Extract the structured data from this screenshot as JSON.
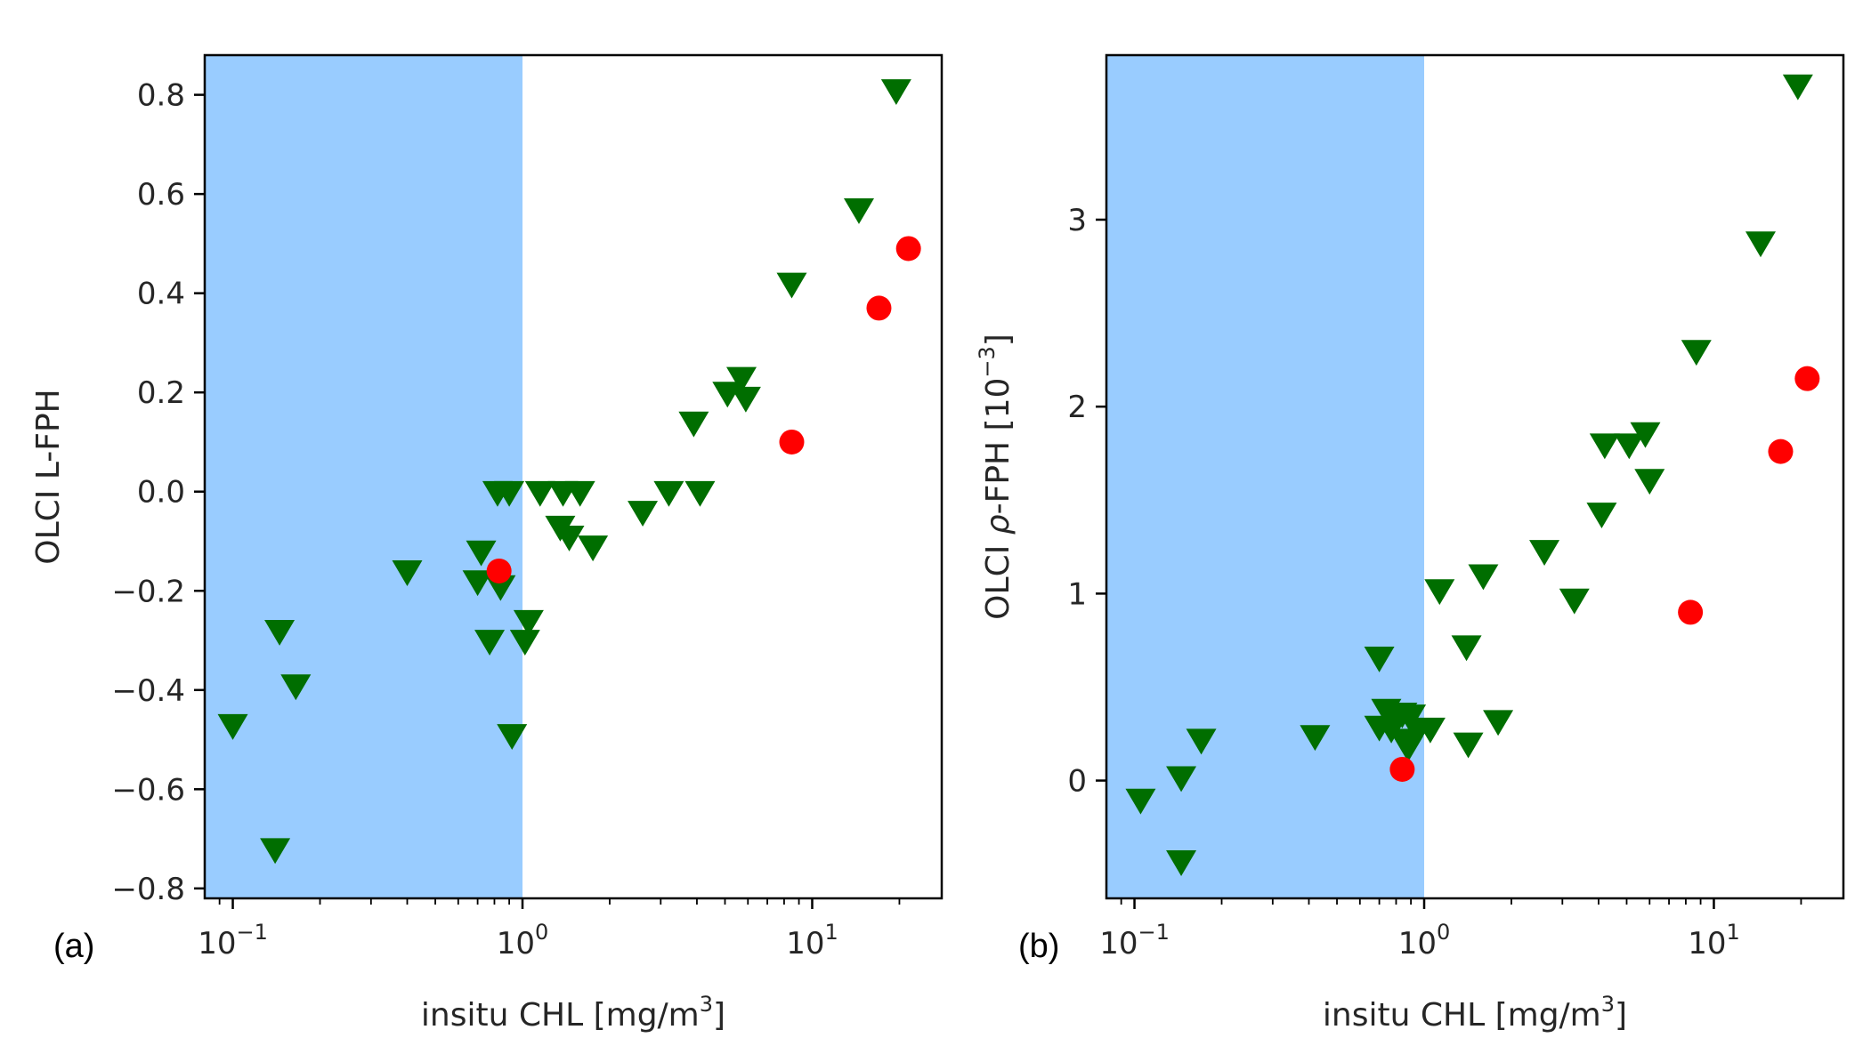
{
  "colors": {
    "shade": "#99ccff",
    "triangle": "#006e00",
    "circle": "#ff0000",
    "axis": "#000000"
  },
  "chart_data": [
    {
      "type": "scatter",
      "panel_label": "(a)",
      "xlabel": "insitu CHL [mg/m³]",
      "xlabel_base": "insitu CHL [mg/m",
      "xlabel_sup": "3",
      "xlabel_end": "]",
      "ylabel": "OLCI L-FPH",
      "xscale": "log",
      "xlim": [
        0.08,
        28
      ],
      "ylim": [
        -0.82,
        0.88
      ],
      "xticks": [
        {
          "value": 0.1,
          "base": "10",
          "exp": "−1"
        },
        {
          "value": 1,
          "base": "10",
          "exp": "0"
        },
        {
          "value": 10,
          "base": "10",
          "exp": "1"
        }
      ],
      "yticks": [
        {
          "value": 0.8,
          "label": "0.8"
        },
        {
          "value": 0.6,
          "label": "0.6"
        },
        {
          "value": 0.4,
          "label": "0.4"
        },
        {
          "value": 0.2,
          "label": "0.2"
        },
        {
          "value": 0.0,
          "label": "0.0"
        },
        {
          "value": -0.2,
          "label": "−0.2"
        },
        {
          "value": -0.4,
          "label": "−0.4"
        },
        {
          "value": -0.6,
          "label": "−0.6"
        },
        {
          "value": -0.8,
          "label": "−0.8"
        }
      ],
      "shaded_region": {
        "x_from": 0.08,
        "x_to": 1.0
      },
      "series": [
        {
          "name": "triangles",
          "marker": "triangle-down",
          "points": [
            [
              0.1,
              -0.47
            ],
            [
              0.14,
              -0.72
            ],
            [
              0.145,
              -0.28
            ],
            [
              0.165,
              -0.39
            ],
            [
              0.4,
              -0.16
            ],
            [
              0.7,
              -0.18
            ],
            [
              0.72,
              -0.12
            ],
            [
              0.77,
              -0.3
            ],
            [
              0.82,
              0.0
            ],
            [
              0.84,
              -0.19
            ],
            [
              0.9,
              0.0
            ],
            [
              0.92,
              -0.49
            ],
            [
              1.02,
              -0.3
            ],
            [
              1.05,
              -0.26
            ],
            [
              1.15,
              0.0
            ],
            [
              1.35,
              -0.07
            ],
            [
              1.38,
              0.0
            ],
            [
              1.45,
              -0.09
            ],
            [
              1.58,
              0.0
            ],
            [
              1.75,
              -0.11
            ],
            [
              2.6,
              -0.04
            ],
            [
              3.2,
              0.0
            ],
            [
              3.9,
              0.14
            ],
            [
              4.1,
              0.0
            ],
            [
              5.1,
              0.2
            ],
            [
              5.7,
              0.23
            ],
            [
              5.9,
              0.19
            ],
            [
              8.5,
              0.42
            ],
            [
              14.5,
              0.57
            ],
            [
              19.5,
              0.81
            ]
          ]
        },
        {
          "name": "circles",
          "marker": "circle",
          "points": [
            [
              0.83,
              -0.16
            ],
            [
              8.5,
              0.1
            ],
            [
              17.0,
              0.37
            ],
            [
              21.5,
              0.49
            ]
          ]
        }
      ]
    },
    {
      "type": "scatter",
      "panel_label": "(b)",
      "xlabel": "insitu CHL [mg/m³]",
      "xlabel_base": "insitu CHL [mg/m",
      "xlabel_sup": "3",
      "xlabel_end": "]",
      "ylabel": "OLCI ρ-FPH [10⁻³]",
      "ylabel_base": "OLCI ",
      "ylabel_rho": "ρ",
      "ylabel_mid": "-FPH [10",
      "ylabel_sup": "−3",
      "ylabel_end": "]",
      "xscale": "log",
      "xlim": [
        0.08,
        28
      ],
      "ylim": [
        -0.63,
        3.88
      ],
      "xticks": [
        {
          "value": 0.1,
          "base": "10",
          "exp": "−1"
        },
        {
          "value": 1,
          "base": "10",
          "exp": "0"
        },
        {
          "value": 10,
          "base": "10",
          "exp": "1"
        }
      ],
      "yticks": [
        {
          "value": 3,
          "label": "3"
        },
        {
          "value": 2,
          "label": "2"
        },
        {
          "value": 1,
          "label": "1"
        },
        {
          "value": 0,
          "label": "0"
        }
      ],
      "shaded_region": {
        "x_from": 0.08,
        "x_to": 1.0
      },
      "series": [
        {
          "name": "triangles",
          "marker": "triangle-down",
          "points": [
            [
              0.105,
              -0.1
            ],
            [
              0.145,
              0.02
            ],
            [
              0.145,
              -0.43
            ],
            [
              0.17,
              0.22
            ],
            [
              0.42,
              0.24
            ],
            [
              0.7,
              0.66
            ],
            [
              0.7,
              0.29
            ],
            [
              0.74,
              0.38
            ],
            [
              0.77,
              0.28
            ],
            [
              0.8,
              0.33
            ],
            [
              0.84,
              0.36
            ],
            [
              0.86,
              0.22
            ],
            [
              0.88,
              0.18
            ],
            [
              0.9,
              0.35
            ],
            [
              0.95,
              0.27
            ],
            [
              1.05,
              0.28
            ],
            [
              1.13,
              1.02
            ],
            [
              1.4,
              0.72
            ],
            [
              1.42,
              0.2
            ],
            [
              1.6,
              1.1
            ],
            [
              1.8,
              0.32
            ],
            [
              2.6,
              1.23
            ],
            [
              3.3,
              0.97
            ],
            [
              4.1,
              1.43
            ],
            [
              4.2,
              1.8
            ],
            [
              5.1,
              1.8
            ],
            [
              5.8,
              1.86
            ],
            [
              6.0,
              1.61
            ],
            [
              8.7,
              2.3
            ],
            [
              14.5,
              2.88
            ],
            [
              19.5,
              3.72
            ]
          ]
        },
        {
          "name": "circles",
          "marker": "circle",
          "points": [
            [
              0.84,
              0.06
            ],
            [
              8.3,
              0.9
            ],
            [
              17.0,
              1.76
            ],
            [
              21.0,
              2.15
            ]
          ]
        }
      ]
    }
  ]
}
